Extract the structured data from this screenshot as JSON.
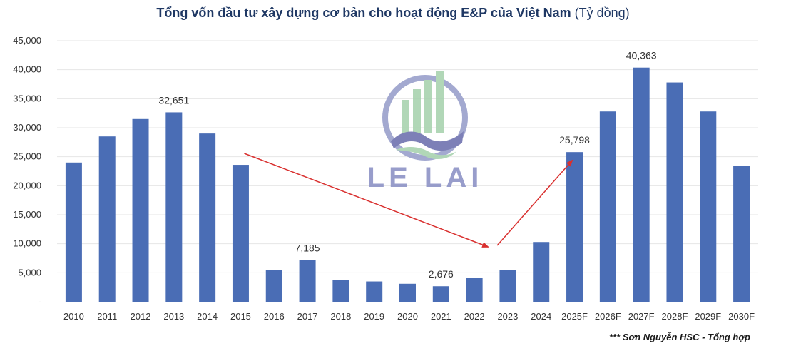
{
  "chart_data": {
    "type": "bar",
    "title": "Tổng vốn đầu tư xây dựng cơ bản cho hoạt động E&P của Việt Nam",
    "title_unit": "(Tỷ đồng)",
    "categories": [
      "2010",
      "2011",
      "2012",
      "2013",
      "2014",
      "2015",
      "2016",
      "2017",
      "2018",
      "2019",
      "2020",
      "2021",
      "2022",
      "2023",
      "2024",
      "2025F",
      "2026F",
      "2027F",
      "2028F",
      "2029F",
      "2030F"
    ],
    "values": [
      24000,
      28500,
      31500,
      32651,
      29000,
      23600,
      5500,
      7185,
      3800,
      3500,
      3100,
      2676,
      4100,
      5500,
      10300,
      25798,
      32800,
      40363,
      37800,
      32800,
      23400
    ],
    "data_labels": {
      "2013": "32,651",
      "2017": "7,185",
      "2021": "2,676",
      "2025F": "25,798",
      "2027F": "40,363"
    },
    "yticks": [
      "-",
      "5,000",
      "10,000",
      "15,000",
      "20,000",
      "25,000",
      "30,000",
      "35,000",
      "40,000",
      "45,000"
    ],
    "ylim": [
      0,
      45000
    ],
    "grid": true,
    "bar_color": "#4a6db5",
    "arrow_color": "#d9302f",
    "legend": "none"
  },
  "source_note": "*** Sơn Nguyễn HSC - Tổng hợp",
  "watermark": {
    "text": "LE LAI",
    "icon": "building-wave-logo-icon",
    "colors": {
      "ring": "#9aa0cc",
      "bars": "#a9d3b0",
      "wave": "#6f73b0"
    }
  }
}
